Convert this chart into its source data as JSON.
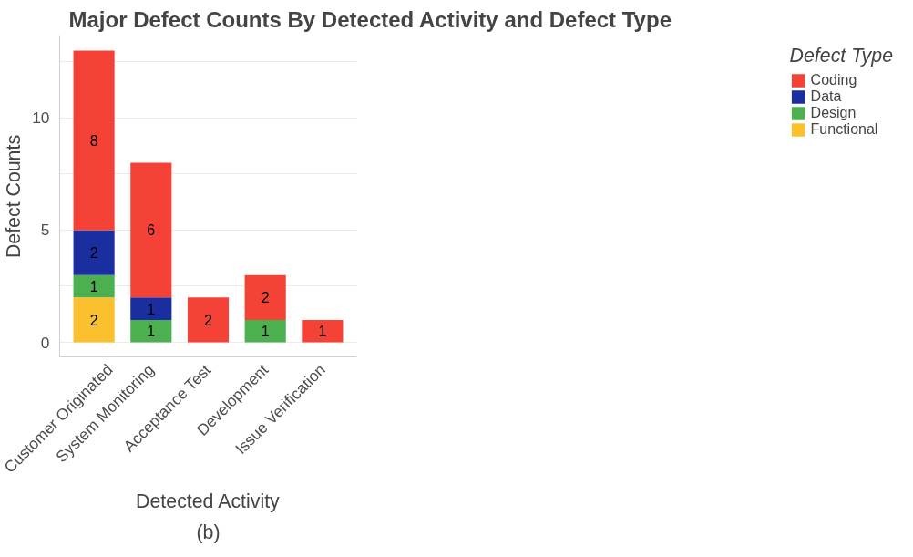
{
  "chart_data": {
    "type": "bar",
    "title": "Major Defect Counts By Detected Activity and Defect Type",
    "xlabel": "Detected Activity",
    "ylabel": "Defect Counts",
    "legend_title": "Defect Type",
    "annotations": [
      "(b)"
    ],
    "categories": [
      "Customer Originated",
      "System Monitoring",
      "Acceptance Test",
      "Development",
      "Issue Verification"
    ],
    "stacked": true,
    "data_labels": true,
    "grid": "y",
    "legend": "right",
    "ylim": [
      -0.65,
      13.65
    ],
    "yticks": [
      0,
      {
        "value": 2.5,
        "label": null
      },
      5,
      {
        "value": 7.5,
        "label": null
      },
      10,
      {
        "value": 12.5,
        "label": null
      }
    ],
    "series": [
      {
        "name": "Functional",
        "color": "#fbc02d",
        "values": [
          2,
          null,
          null,
          null,
          null
        ]
      },
      {
        "name": "Design",
        "color": "#4caf50",
        "values": [
          1,
          1,
          null,
          1,
          null
        ]
      },
      {
        "name": "Data",
        "color": "#1a2ea0",
        "values": [
          2,
          1,
          null,
          null,
          null
        ]
      },
      {
        "name": "Coding",
        "color": "#f44336",
        "values": [
          8,
          6,
          2,
          2,
          1
        ]
      }
    ]
  }
}
